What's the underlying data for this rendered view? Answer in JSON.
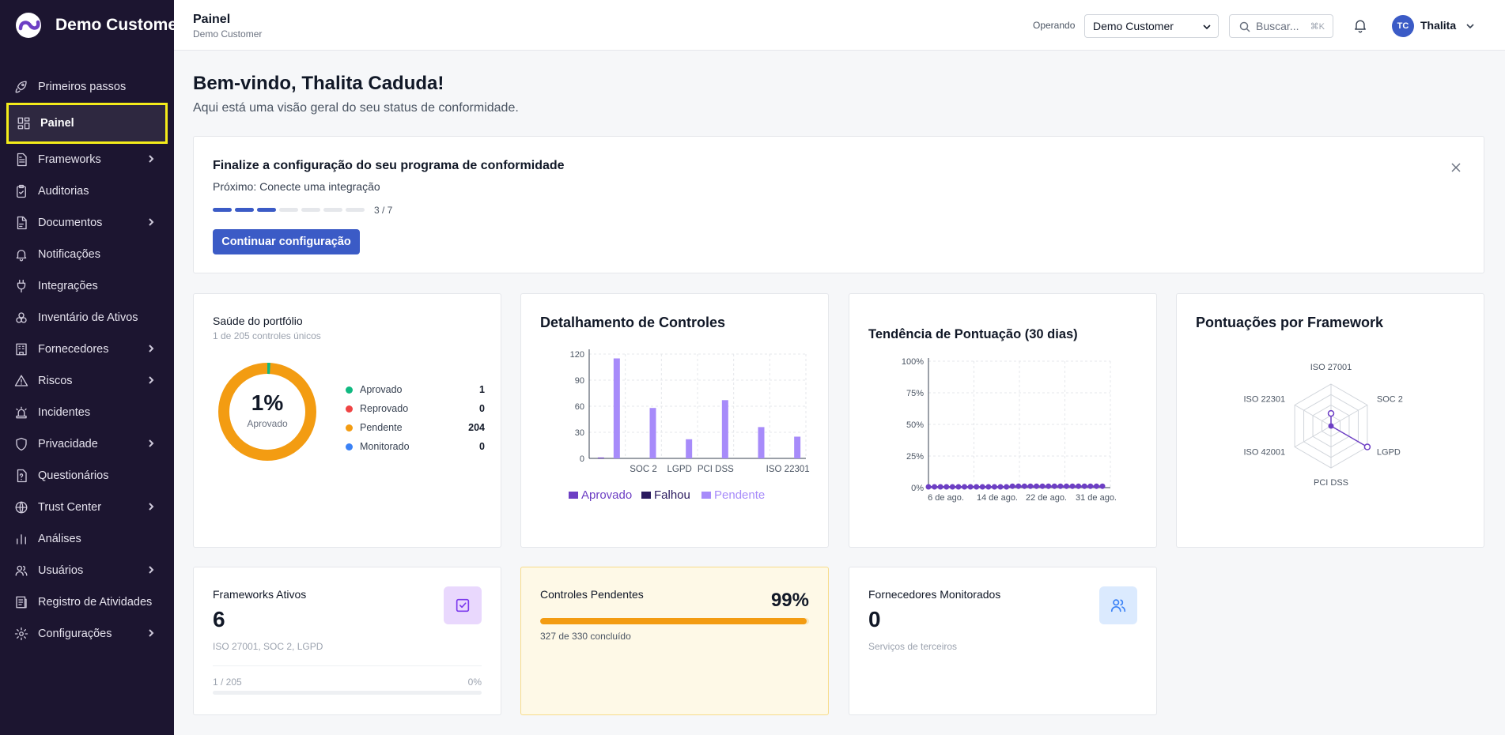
{
  "brand": {
    "name": "Demo Customer"
  },
  "sidebar": {
    "items": [
      {
        "label": "Primeiros passos",
        "icon": "rocket-icon",
        "chevron": false
      },
      {
        "label": "Painel",
        "icon": "dashboard-icon",
        "chevron": false,
        "active": true
      },
      {
        "label": "Frameworks",
        "icon": "document-icon",
        "chevron": true
      },
      {
        "label": "Auditorias",
        "icon": "clipboard-check-icon",
        "chevron": false
      },
      {
        "label": "Documentos",
        "icon": "file-icon",
        "chevron": true
      },
      {
        "label": "Notificações",
        "icon": "bell-icon",
        "chevron": false
      },
      {
        "label": "Integrações",
        "icon": "plug-icon",
        "chevron": false
      },
      {
        "label": "Inventário de Ativos",
        "icon": "boxes-icon",
        "chevron": false
      },
      {
        "label": "Fornecedores",
        "icon": "building-icon",
        "chevron": true
      },
      {
        "label": "Riscos",
        "icon": "warning-icon",
        "chevron": true
      },
      {
        "label": "Incidentes",
        "icon": "siren-icon",
        "chevron": false
      },
      {
        "label": "Privacidade",
        "icon": "shield-icon",
        "chevron": true
      },
      {
        "label": "Questionários",
        "icon": "questionnaire-icon",
        "chevron": false
      },
      {
        "label": "Trust Center",
        "icon": "globe-icon",
        "chevron": true
      },
      {
        "label": "Análises",
        "icon": "bar-chart-icon",
        "chevron": false
      },
      {
        "label": "Usuários",
        "icon": "users-icon",
        "chevron": true
      },
      {
        "label": "Registro de Atividades",
        "icon": "log-icon",
        "chevron": false
      },
      {
        "label": "Configurações",
        "icon": "gear-icon",
        "chevron": true
      }
    ]
  },
  "header": {
    "title": "Painel",
    "subtitle": "Demo Customer",
    "operating_label": "Operando",
    "customer_select": "Demo Customer",
    "search_placeholder": "Buscar...",
    "search_shortcut": "⌘K",
    "avatar_initials": "TC",
    "user_name": "Thalita"
  },
  "welcome": {
    "title": "Bem-vindo, Thalita Caduda!",
    "subtitle": "Aqui está uma visão geral do seu status de conformidade."
  },
  "setup": {
    "title": "Finalize a configuração do seu programa de conformidade",
    "next": "Próximo: Conecte uma integração",
    "steps_done": 3,
    "steps_total": 7,
    "steps_label": "3 / 7",
    "button": "Continuar configuração"
  },
  "portfolio": {
    "title": "Saúde do portfólio",
    "subtitle": "1 de 205 controles únicos",
    "percent": "1%",
    "percent_label": "Aprovado",
    "legend": [
      {
        "label": "Aprovado",
        "value": "1",
        "color": "#10b981"
      },
      {
        "label": "Reprovado",
        "value": "0",
        "color": "#ef4444"
      },
      {
        "label": "Pendente",
        "value": "204",
        "color": "#f39c12"
      },
      {
        "label": "Monitorado",
        "value": "0",
        "color": "#3b82f6"
      }
    ]
  },
  "controls_card": {
    "title": "Detalhamento de Controles"
  },
  "trend_card": {
    "title": "Tendência de Pontuação (30 dias)"
  },
  "fwscore_card": {
    "title": "Pontuações por Framework"
  },
  "chart_data": [
    {
      "type": "bar",
      "title": "Detalhamento de Controles",
      "categories": [
        "",
        "SOC 2",
        "LGPD",
        "PCI DSS",
        "",
        "ISO 22301"
      ],
      "series": [
        {
          "name": "Aprovado",
          "values": [
            1,
            0,
            0,
            0,
            0,
            0
          ],
          "color": "#6d3fc4"
        },
        {
          "name": "Falhou",
          "values": [
            0,
            0,
            0,
            0,
            0,
            0
          ],
          "color": "#2a1a5e"
        },
        {
          "name": "Pendente",
          "values": [
            115,
            58,
            22,
            67,
            36,
            25
          ],
          "color": "#a78bfa"
        }
      ],
      "ylim": [
        0,
        120
      ],
      "yticks": [
        0,
        30,
        60,
        90,
        120
      ]
    },
    {
      "type": "line",
      "title": "Tendência de Pontuação (30 dias)",
      "xticks": [
        "6 de ago.",
        "14 de ago.",
        "22 de ago.",
        "31 de ago."
      ],
      "yticks": [
        "0%",
        "25%",
        "50%",
        "75%",
        "100%"
      ],
      "ylim": [
        0,
        100
      ],
      "values": [
        0,
        0,
        0,
        0,
        0,
        0,
        0,
        0,
        0,
        0,
        0,
        0,
        0,
        0,
        0.5,
        0.5,
        0.5,
        0.5,
        0.5,
        0.5,
        0.5,
        0.5,
        0.5,
        0.5,
        0.5,
        0.5,
        0.5,
        0.5,
        0.5,
        0.5
      ],
      "color": "#6d3fc4"
    },
    {
      "type": "radar",
      "title": "Pontuações por Framework",
      "axes": [
        "ISO 27001",
        "SOC 2",
        "LGPD",
        "PCI DSS",
        "ISO 42001",
        "ISO 22301"
      ],
      "values": [
        30,
        0,
        100,
        0,
        0,
        0
      ],
      "color": "#6d3fc4"
    }
  ],
  "stats": {
    "frameworks": {
      "label": "Frameworks Ativos",
      "value": "6",
      "hint": "ISO 27001, SOC 2, LGPD",
      "foot_left": "1 / 205",
      "foot_right": "0%"
    },
    "pending": {
      "label": "Controles Pendentes",
      "percent": "99%",
      "progress": 0.99,
      "hint": "327 de 330 concluído"
    },
    "vendors": {
      "label": "Fornecedores Monitorados",
      "value": "0",
      "hint": "Serviços de terceiros"
    }
  }
}
